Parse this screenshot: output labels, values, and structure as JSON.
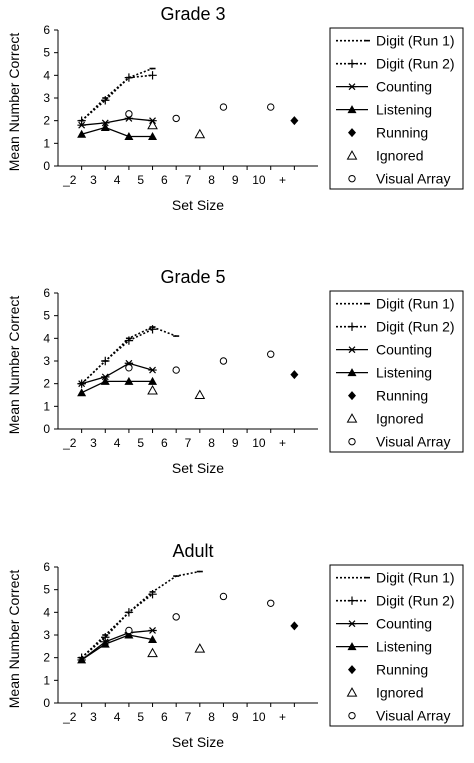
{
  "chart_data": [
    {
      "type": "line",
      "title": "Grade 3",
      "xlabel": "Set Size",
      "ylabel": "Mean Number Correct",
      "ylim": [
        0,
        6
      ],
      "yticks": [
        "0",
        "1",
        "2",
        "3",
        "4",
        "5",
        "6"
      ],
      "xticks": [
        "_2",
        "3",
        "4",
        "5",
        "6",
        "7",
        "8",
        "9",
        "10",
        "+"
      ],
      "legend_position": "right",
      "series": [
        {
          "name": "Digit (Run 1)",
          "style": "dotted",
          "marker": "dash",
          "x": [
            2,
            3,
            4,
            5
          ],
          "y": [
            2.0,
            3.0,
            3.9,
            4.3
          ]
        },
        {
          "name": "Digit (Run 2)",
          "style": "dotted",
          "marker": "plus",
          "x": [
            2,
            3,
            4,
            5
          ],
          "y": [
            2.0,
            2.9,
            3.9,
            4.0
          ]
        },
        {
          "name": "Counting",
          "style": "solid",
          "marker": "asterisk",
          "x": [
            2,
            3,
            4,
            5
          ],
          "y": [
            1.8,
            1.9,
            2.1,
            2.0
          ]
        },
        {
          "name": "Listening",
          "style": "solid",
          "marker": "triangle-filled",
          "x": [
            2,
            3,
            4,
            5
          ],
          "y": [
            1.4,
            1.7,
            1.3,
            1.3
          ]
        },
        {
          "name": "Running",
          "style": "none",
          "marker": "diamond-filled",
          "x": [
            "+"
          ],
          "y": [
            2.0
          ]
        },
        {
          "name": "Ignored",
          "style": "none",
          "marker": "triangle-open",
          "x": [
            5,
            7
          ],
          "y": [
            1.8,
            1.4
          ]
        },
        {
          "name": "Visual Array",
          "style": "none",
          "marker": "circle-open",
          "x": [
            4,
            6,
            8,
            10
          ],
          "y": [
            2.3,
            2.1,
            2.6,
            2.6
          ]
        }
      ]
    },
    {
      "type": "line",
      "title": "Grade 5",
      "xlabel": "Set Size",
      "ylabel": "Mean Number Correct",
      "ylim": [
        0,
        6
      ],
      "yticks": [
        "0",
        "1",
        "2",
        "3",
        "4",
        "5",
        "6"
      ],
      "xticks": [
        "_2",
        "3",
        "4",
        "5",
        "6",
        "7",
        "8",
        "9",
        "10",
        "+"
      ],
      "legend_position": "right",
      "series": [
        {
          "name": "Digit (Run 1)",
          "style": "dotted",
          "marker": "dash",
          "x": [
            2,
            3,
            4,
            5,
            6
          ],
          "y": [
            2.0,
            3.0,
            4.0,
            4.5,
            4.1
          ]
        },
        {
          "name": "Digit (Run 2)",
          "style": "dotted",
          "marker": "plus",
          "x": [
            2,
            3,
            4,
            5
          ],
          "y": [
            2.0,
            3.0,
            3.9,
            4.4
          ]
        },
        {
          "name": "Counting",
          "style": "solid",
          "marker": "asterisk",
          "x": [
            2,
            3,
            4,
            5
          ],
          "y": [
            2.0,
            2.3,
            2.9,
            2.6
          ]
        },
        {
          "name": "Listening",
          "style": "solid",
          "marker": "triangle-filled",
          "x": [
            2,
            3,
            4,
            5
          ],
          "y": [
            1.6,
            2.1,
            2.1,
            2.1
          ]
        },
        {
          "name": "Running",
          "style": "none",
          "marker": "diamond-filled",
          "x": [
            "+"
          ],
          "y": [
            2.4
          ]
        },
        {
          "name": "Ignored",
          "style": "none",
          "marker": "triangle-open",
          "x": [
            5,
            7
          ],
          "y": [
            1.7,
            1.5
          ]
        },
        {
          "name": "Visual Array",
          "style": "none",
          "marker": "circle-open",
          "x": [
            4,
            6,
            8,
            10
          ],
          "y": [
            2.7,
            2.6,
            3.0,
            3.3
          ]
        }
      ]
    },
    {
      "type": "line",
      "title": "Adult",
      "xlabel": "Set Size",
      "ylabel": "Mean Number Correct",
      "ylim": [
        0,
        6
      ],
      "yticks": [
        "0",
        "1",
        "2",
        "3",
        "4",
        "5",
        "6"
      ],
      "xticks": [
        "_2",
        "3",
        "4",
        "5",
        "6",
        "7",
        "8",
        "9",
        "10",
        "+"
      ],
      "legend_position": "right",
      "series": [
        {
          "name": "Digit (Run 1)",
          "style": "dotted",
          "marker": "dash",
          "x": [
            2,
            3,
            4,
            5,
            6,
            7
          ],
          "y": [
            2.0,
            3.0,
            4.0,
            4.9,
            5.6,
            5.8
          ]
        },
        {
          "name": "Digit (Run 2)",
          "style": "dotted",
          "marker": "plus",
          "x": [
            2,
            3,
            4,
            5
          ],
          "y": [
            2.0,
            2.9,
            4.0,
            4.8
          ]
        },
        {
          "name": "Counting",
          "style": "solid",
          "marker": "asterisk",
          "x": [
            2,
            3,
            4,
            5
          ],
          "y": [
            1.9,
            2.7,
            3.1,
            3.2
          ]
        },
        {
          "name": "Listening",
          "style": "solid",
          "marker": "triangle-filled",
          "x": [
            2,
            3,
            4,
            5
          ],
          "y": [
            1.9,
            2.6,
            3.0,
            2.8
          ]
        },
        {
          "name": "Running",
          "style": "none",
          "marker": "diamond-filled",
          "x": [
            "+"
          ],
          "y": [
            3.4
          ]
        },
        {
          "name": "Ignored",
          "style": "none",
          "marker": "triangle-open",
          "x": [
            5,
            7
          ],
          "y": [
            2.2,
            2.4
          ]
        },
        {
          "name": "Visual Array",
          "style": "none",
          "marker": "circle-open",
          "x": [
            4,
            6,
            8,
            10
          ],
          "y": [
            3.2,
            3.8,
            4.7,
            4.4
          ]
        }
      ]
    }
  ]
}
